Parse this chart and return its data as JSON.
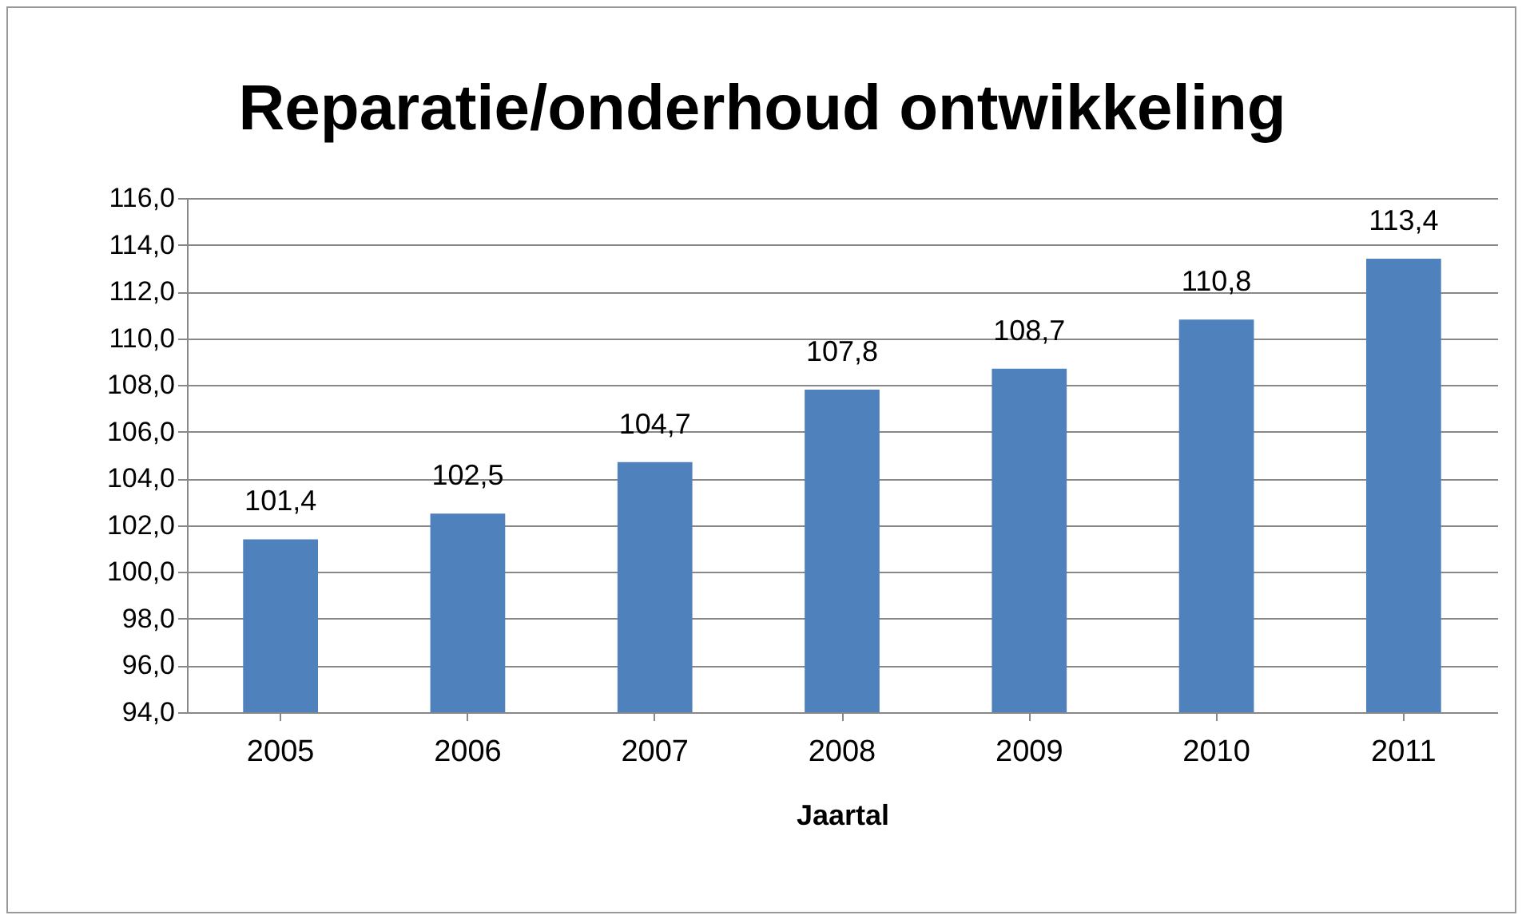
{
  "chart_data": {
    "type": "bar",
    "title": "Reparatie/onderhoud ontwikkeling",
    "xlabel": "Jaartal",
    "categories": [
      "2005",
      "2006",
      "2007",
      "2008",
      "2009",
      "2010",
      "2011"
    ],
    "values": [
      101.4,
      102.5,
      104.7,
      107.8,
      108.7,
      110.8,
      113.4
    ],
    "value_labels": [
      "101,4",
      "102,5",
      "104,7",
      "107,8",
      "108,7",
      "110,8",
      "113,4"
    ],
    "color": "#4f81bd",
    "ylim": [
      94,
      116
    ],
    "yticks": [
      {
        "value": 94,
        "label": "94,0"
      },
      {
        "value": 96,
        "label": "96,0"
      },
      {
        "value": 98,
        "label": "98,0"
      },
      {
        "value": 100,
        "label": "100,0"
      },
      {
        "value": 102,
        "label": "102,0"
      },
      {
        "value": 104,
        "label": "104,0"
      },
      {
        "value": 106,
        "label": "106,0"
      },
      {
        "value": 108,
        "label": "108,0"
      },
      {
        "value": 110,
        "label": "110,0"
      },
      {
        "value": 112,
        "label": "112,0"
      },
      {
        "value": 114,
        "label": "114,0"
      },
      {
        "value": 116,
        "label": "116,0"
      }
    ],
    "grid": "y"
  }
}
